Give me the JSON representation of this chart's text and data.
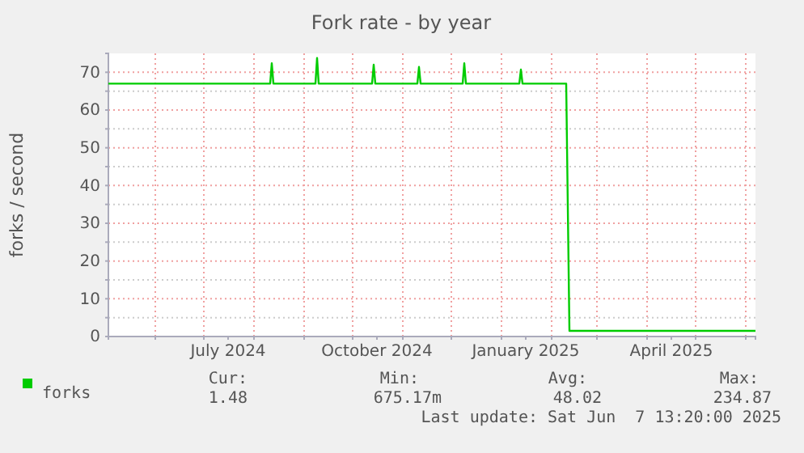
{
  "chart_data": {
    "type": "line",
    "title": "Fork rate - by year",
    "ylabel": "forks / second",
    "x": [
      "2024-05-03",
      "2024-08-11",
      "2024-08-12",
      "2024-08-13",
      "2024-09-08",
      "2024-09-09",
      "2024-09-10",
      "2024-10-13",
      "2024-10-14",
      "2024-10-15",
      "2024-11-10",
      "2024-11-11",
      "2024-11-12",
      "2024-12-08",
      "2024-12-09",
      "2024-12-10",
      "2025-01-12",
      "2025-01-13",
      "2025-01-14",
      "2025-02-10",
      "2025-02-12",
      "2025-03-10",
      "2025-04-10",
      "2025-05-10",
      "2025-06-07"
    ],
    "series": [
      {
        "name": "forks",
        "color": "#00cc00",
        "values": [
          67,
          67,
          72.4,
          67,
          67,
          73.8,
          67,
          67,
          72,
          67,
          67,
          71.4,
          67,
          67,
          72.4,
          67,
          67,
          70.7,
          67,
          67,
          1.5,
          1.5,
          1.5,
          1.5,
          1.5
        ]
      }
    ],
    "xlim": [
      "2024-05-03",
      "2025-06-07"
    ],
    "xticks": [
      {
        "value": "2024-06-01",
        "label": null
      },
      {
        "value": "2024-07-01",
        "label": null
      },
      {
        "value": "2024-07-16",
        "label": "July 2024"
      },
      {
        "value": "2024-08-01",
        "label": null
      },
      {
        "value": "2024-09-01",
        "label": null
      },
      {
        "value": "2024-10-01",
        "label": null
      },
      {
        "value": "2024-10-16",
        "label": "October 2024"
      },
      {
        "value": "2024-11-01",
        "label": null
      },
      {
        "value": "2024-12-01",
        "label": null
      },
      {
        "value": "2025-01-01",
        "label": null
      },
      {
        "value": "2025-01-16",
        "label": "January 2025"
      },
      {
        "value": "2025-02-01",
        "label": null
      },
      {
        "value": "2025-03-01",
        "label": null
      },
      {
        "value": "2025-04-01",
        "label": null
      },
      {
        "value": "2025-04-16",
        "label": "April 2025"
      },
      {
        "value": "2025-05-01",
        "label": null
      },
      {
        "value": "2025-06-01",
        "label": null
      }
    ],
    "ylim": [
      0,
      75
    ],
    "yticks": [
      0,
      {
        "value": 5,
        "label": null
      },
      10,
      {
        "value": 15,
        "label": null
      },
      20,
      {
        "value": 25,
        "label": null
      },
      30,
      {
        "value": 35,
        "label": null
      },
      40,
      {
        "value": 45,
        "label": null
      },
      50,
      {
        "value": 55,
        "label": null
      },
      60,
      {
        "value": 65,
        "label": null
      },
      70
    ],
    "grid": true,
    "legend": "bottom left",
    "marker": "none",
    "line_style": "solid",
    "annotations": [
      "Cur:",
      "Min:",
      "Avg:",
      "Max:",
      "1.48",
      "675.17m",
      "48.02",
      "234.87",
      "Last update: Sat Jun  7 13:20:00 2025"
    ]
  }
}
